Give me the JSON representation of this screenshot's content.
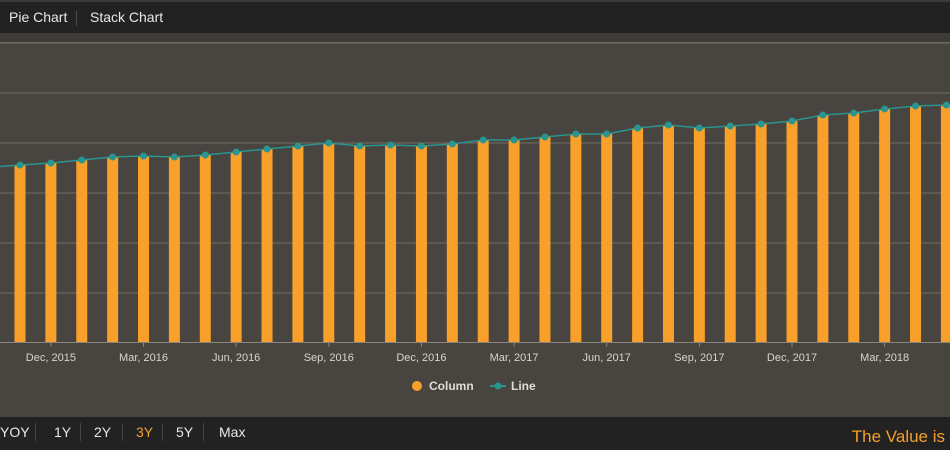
{
  "tabs": [
    {
      "label": "Pie Chart"
    },
    {
      "label": "Stack Chart"
    }
  ],
  "ranges": [
    {
      "label": "YOY"
    },
    {
      "label": "1Y"
    },
    {
      "label": "2Y"
    },
    {
      "label": "3Y",
      "active": true
    },
    {
      "label": "5Y"
    },
    {
      "label": "Max"
    }
  ],
  "value_text": "The Value is",
  "colors": {
    "column": "#f9a02a",
    "line": "#2a9490",
    "background": "#48443f",
    "bar_bg": "#232222",
    "active": "#f5a02a"
  },
  "chart_data": {
    "type": "bar+line",
    "categories": [
      "Nov, 2015",
      "Dec, 2015",
      "Jan, 2016",
      "Feb, 2016",
      "Mar, 2016",
      "Apr, 2016",
      "May, 2016",
      "Jun, 2016",
      "Jul, 2016",
      "Aug, 2016",
      "Sep, 2016",
      "Oct, 2016",
      "Nov, 2016",
      "Dec, 2016",
      "Jan, 2017",
      "Feb, 2017",
      "Mar, 2017",
      "Apr, 2017",
      "May, 2017",
      "Jun, 2017",
      "Jul, 2017",
      "Aug, 2017",
      "Sep, 2017",
      "Oct, 2017",
      "Nov, 2017",
      "Dec, 2017",
      "Jan, 2018",
      "Feb, 2018",
      "Mar, 2018",
      "Apr, 2018",
      "May, 2018"
    ],
    "tick_labels": [
      "Dec, 2015",
      "Mar, 2016",
      "Jun, 2016",
      "Sep, 2016",
      "Dec, 2016",
      "Mar, 2017",
      "Jun, 2017",
      "Sep, 2017",
      "Dec, 2017",
      "Mar, 2018"
    ],
    "series": [
      {
        "name": "Column",
        "type": "column",
        "values": [
          3.54,
          3.58,
          3.64,
          3.7,
          3.72,
          3.7,
          3.74,
          3.8,
          3.86,
          3.92,
          3.98,
          3.92,
          3.94,
          3.92,
          3.96,
          4.04,
          4.04,
          4.1,
          4.16,
          4.16,
          4.28,
          4.34,
          4.28,
          4.32,
          4.36,
          4.42,
          4.54,
          4.58,
          4.66,
          4.72,
          4.74
        ]
      },
      {
        "name": "Line",
        "type": "line",
        "values": [
          3.54,
          3.58,
          3.64,
          3.7,
          3.72,
          3.7,
          3.74,
          3.8,
          3.86,
          3.92,
          3.98,
          3.92,
          3.94,
          3.92,
          3.96,
          4.04,
          4.04,
          4.1,
          4.16,
          4.16,
          4.28,
          4.34,
          4.28,
          4.32,
          4.36,
          4.42,
          4.54,
          4.58,
          4.66,
          4.72,
          4.74
        ]
      }
    ],
    "ylim": [
      0,
      6.2
    ],
    "grid": true,
    "legend": "bottom-center"
  }
}
